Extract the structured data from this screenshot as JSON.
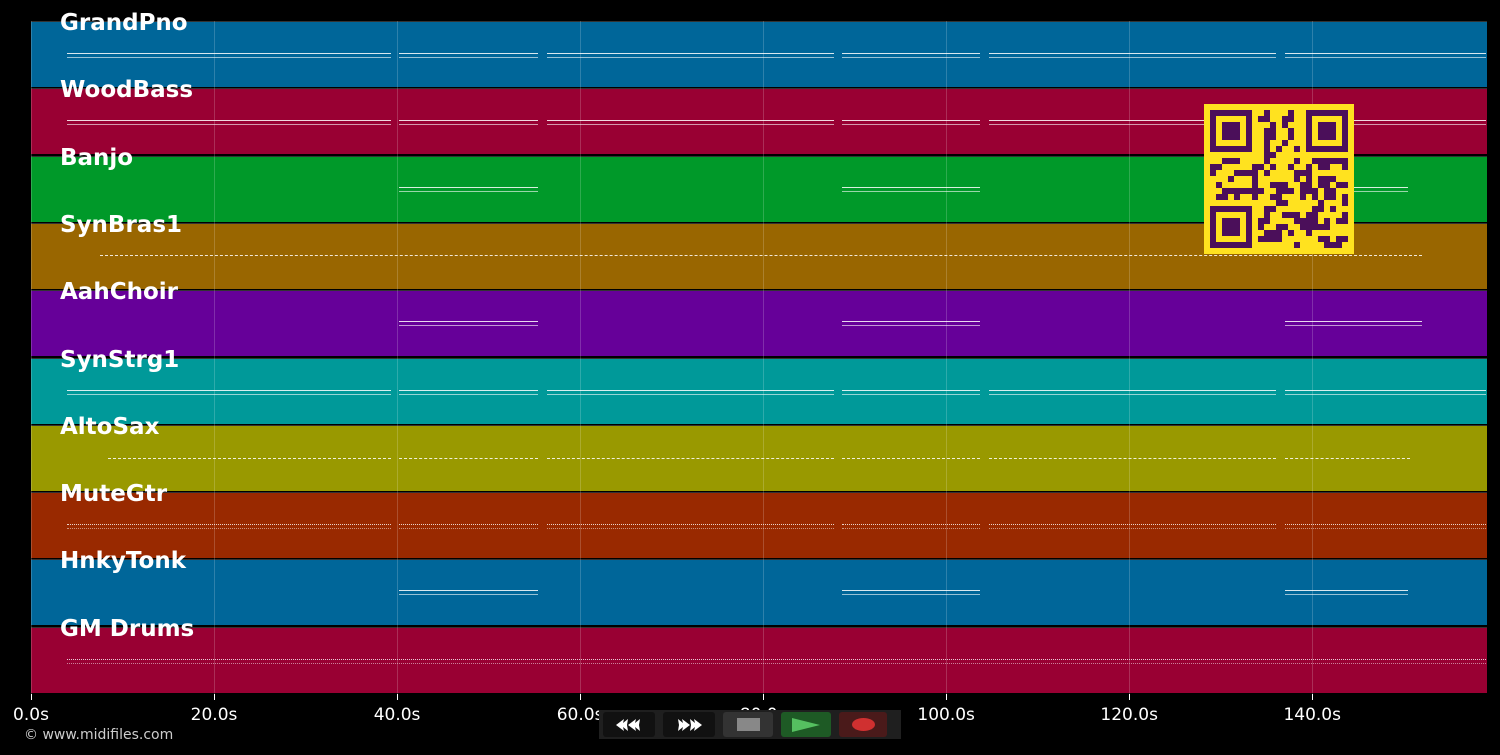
{
  "tracks": [
    {
      "name": "GrandPno",
      "color": "#006699",
      "style": "solid",
      "segments": [
        [
          3.9,
          39.3
        ],
        [
          40.2,
          55.4
        ],
        [
          56.4,
          87.7
        ],
        [
          88.6,
          103.7
        ],
        [
          104.7,
          136
        ],
        [
          137,
          159
        ]
      ]
    },
    {
      "name": "WoodBass",
      "color": "#990033",
      "style": "solid",
      "segments": [
        [
          3.9,
          39.3
        ],
        [
          40.2,
          55.4
        ],
        [
          56.4,
          87.7
        ],
        [
          88.6,
          103.7
        ],
        [
          104.7,
          136
        ],
        [
          137,
          159
        ]
      ]
    },
    {
      "name": "Banjo",
      "color": "#009929",
      "style": "solid",
      "segments": [
        [
          40.2,
          55.4
        ],
        [
          88.6,
          103.7
        ],
        [
          137,
          150.5
        ]
      ]
    },
    {
      "name": "SynBras1",
      "color": "#996600",
      "style": "dashed",
      "segments": [
        [
          7.5,
          152
        ]
      ]
    },
    {
      "name": "AahChoir",
      "color": "#660099",
      "style": "solid",
      "segments": [
        [
          40.2,
          55.4
        ],
        [
          88.6,
          103.7
        ],
        [
          137,
          152
        ]
      ]
    },
    {
      "name": "SynStrg1",
      "color": "#009999",
      "style": "solid",
      "segments": [
        [
          3.9,
          39.3
        ],
        [
          40.2,
          55.4
        ],
        [
          56.4,
          87.7
        ],
        [
          88.6,
          103.7
        ],
        [
          104.7,
          136
        ],
        [
          137,
          159
        ]
      ]
    },
    {
      "name": "AltoSax",
      "color": "#999900",
      "style": "dashed",
      "segments": [
        [
          8.4,
          39.3
        ],
        [
          40.2,
          55.4
        ],
        [
          56.4,
          87.7
        ],
        [
          88.6,
          103.7
        ],
        [
          104.7,
          136
        ],
        [
          137,
          150.7
        ]
      ]
    },
    {
      "name": "MuteGtr",
      "color": "#992900",
      "style": "dotted",
      "segments": [
        [
          3.9,
          39.3
        ],
        [
          40.2,
          55.4
        ],
        [
          56.4,
          87.7
        ],
        [
          88.6,
          103.7
        ],
        [
          104.7,
          136
        ],
        [
          137,
          159
        ]
      ]
    },
    {
      "name": "HnkyTonk",
      "color": "#006699",
      "style": "solid",
      "segments": [
        [
          40.2,
          55.4
        ],
        [
          88.6,
          103.7
        ],
        [
          137,
          150.5
        ]
      ]
    },
    {
      "name": "GM Drums",
      "color": "#990033",
      "style": "dotted",
      "segments": [
        [
          3.9,
          159
        ]
      ]
    }
  ],
  "axis": {
    "ticks": [
      "0.0s",
      "20.0s",
      "40.0s",
      "60.0s",
      "80.0s",
      "100.0s",
      "120.0s",
      "140.0s"
    ],
    "tick_values": [
      0,
      20,
      40,
      60,
      80,
      100,
      120,
      140
    ],
    "max_seconds": 159.1
  },
  "copyright": "© www.midifiles.com",
  "controls": [
    {
      "name": "rewind-button",
      "icon": "rewind-icon",
      "bg": "#111"
    },
    {
      "name": "fast-forward-button",
      "icon": "fast-forward-icon",
      "bg": "#111"
    },
    {
      "name": "stop-button",
      "icon": "stop-icon",
      "bg": "#333"
    },
    {
      "name": "play-button",
      "icon": "play-icon",
      "bg": "#1e5a25"
    },
    {
      "name": "record-button",
      "icon": "record-icon",
      "bg": "#4a1a1a"
    }
  ]
}
